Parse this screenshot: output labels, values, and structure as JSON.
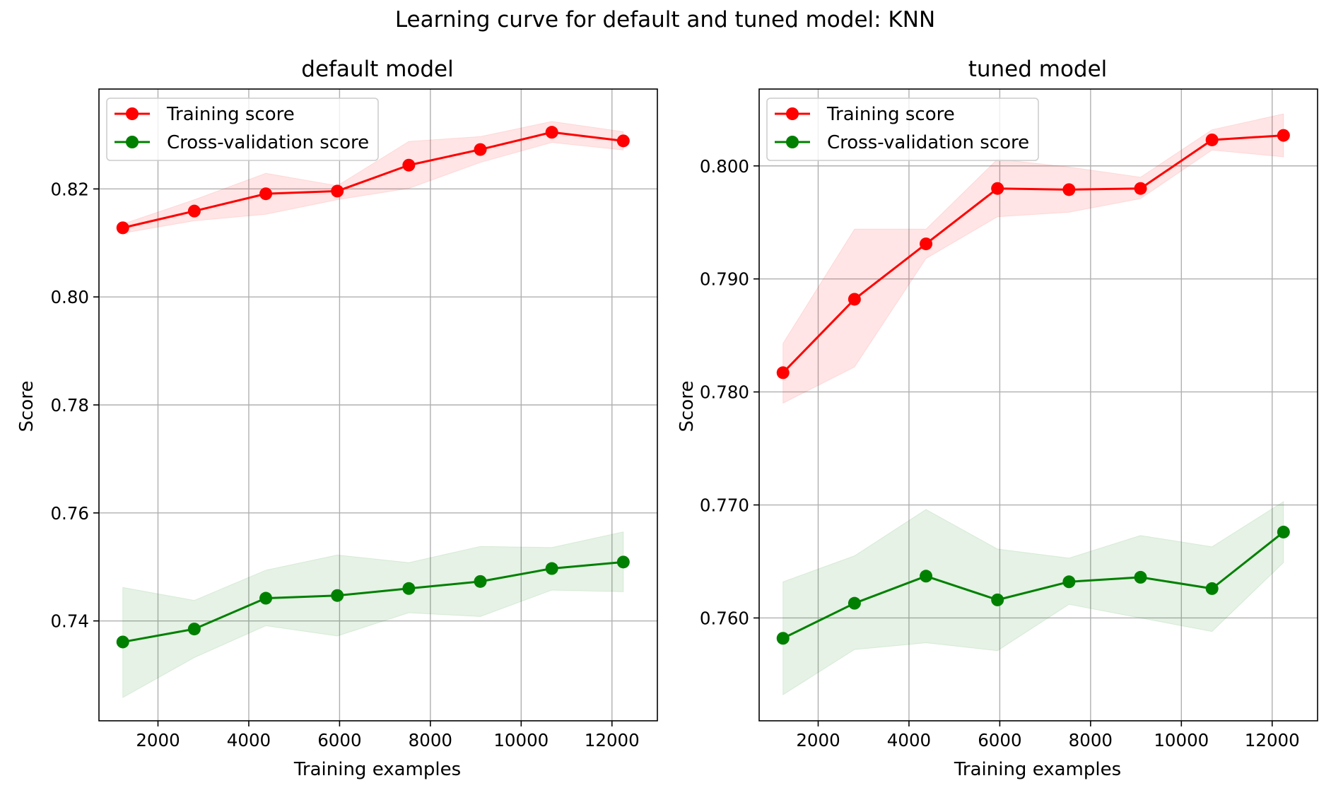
{
  "figure_title": "Learning curve for default and tuned model: KNN",
  "chart_data": [
    {
      "type": "line",
      "title": "default model",
      "xlabel": "Training examples",
      "ylabel": "Score",
      "xlim": [
        700,
        13000
      ],
      "ylim": [
        0.7215,
        0.8385
      ],
      "xticks": [
        2000,
        4000,
        6000,
        8000,
        10000,
        12000
      ],
      "xtick_labels": [
        "2000",
        "4000",
        "6000",
        "8000",
        "10000",
        "12000"
      ],
      "yticks": [
        0.74,
        0.76,
        0.78,
        0.8,
        0.82
      ],
      "ytick_labels": [
        "0.74",
        "0.76",
        "0.78",
        "0.80",
        "0.82"
      ],
      "grid": true,
      "legend_position": "upper-left",
      "x": [
        1225,
        2800,
        4375,
        5950,
        7525,
        9100,
        10675,
        12250
      ],
      "series": [
        {
          "name": "Training score",
          "color": "#ff0000",
          "values": [
            0.8128,
            0.8159,
            0.8191,
            0.8196,
            0.8244,
            0.8273,
            0.8305,
            0.8289
          ],
          "band_lower": [
            0.8118,
            0.8141,
            0.8153,
            0.818,
            0.8201,
            0.8249,
            0.8286,
            0.8272
          ],
          "band_upper": [
            0.8135,
            0.818,
            0.8229,
            0.8206,
            0.8288,
            0.8297,
            0.8325,
            0.8306
          ]
        },
        {
          "name": "Cross-validation score",
          "color": "#008000",
          "values": [
            0.7361,
            0.7385,
            0.7442,
            0.7447,
            0.746,
            0.7473,
            0.7497,
            0.7509
          ],
          "band_lower": [
            0.7258,
            0.7332,
            0.7391,
            0.7372,
            0.7415,
            0.7408,
            0.7457,
            0.7454
          ],
          "band_upper": [
            0.7462,
            0.7438,
            0.7494,
            0.7522,
            0.7508,
            0.7538,
            0.7536,
            0.7565
          ]
        }
      ]
    },
    {
      "type": "line",
      "title": "tuned model",
      "xlabel": "Training examples",
      "ylabel": "Score",
      "xlim": [
        700,
        13000
      ],
      "ylim": [
        0.7509,
        0.8068
      ],
      "xticks": [
        2000,
        4000,
        6000,
        8000,
        10000,
        12000
      ],
      "xtick_labels": [
        "2000",
        "4000",
        "6000",
        "8000",
        "10000",
        "12000"
      ],
      "yticks": [
        0.76,
        0.77,
        0.78,
        0.79,
        0.8
      ],
      "ytick_labels": [
        "0.760",
        "0.770",
        "0.780",
        "0.790",
        "0.800"
      ],
      "grid": true,
      "legend_position": "upper-left",
      "x": [
        1225,
        2800,
        4375,
        5950,
        7525,
        9100,
        10675,
        12250
      ],
      "series": [
        {
          "name": "Training score",
          "color": "#ff0000",
          "values": [
            0.7817,
            0.7882,
            0.7931,
            0.798,
            0.7979,
            0.798,
            0.8023,
            0.8027
          ],
          "band_lower": [
            0.779,
            0.7822,
            0.7918,
            0.7955,
            0.7959,
            0.7971,
            0.8014,
            0.8008
          ],
          "band_upper": [
            0.7843,
            0.7944,
            0.7944,
            0.8006,
            0.7999,
            0.799,
            0.8032,
            0.8046
          ]
        },
        {
          "name": "Cross-validation score",
          "color": "#008000",
          "values": [
            0.7582,
            0.7613,
            0.7637,
            0.7616,
            0.7632,
            0.7636,
            0.7626,
            0.7676
          ],
          "band_lower": [
            0.7532,
            0.7572,
            0.7578,
            0.7571,
            0.7612,
            0.76,
            0.7588,
            0.7649
          ],
          "band_upper": [
            0.7632,
            0.7655,
            0.7696,
            0.7661,
            0.7653,
            0.7673,
            0.7663,
            0.7703
          ]
        }
      ]
    }
  ]
}
